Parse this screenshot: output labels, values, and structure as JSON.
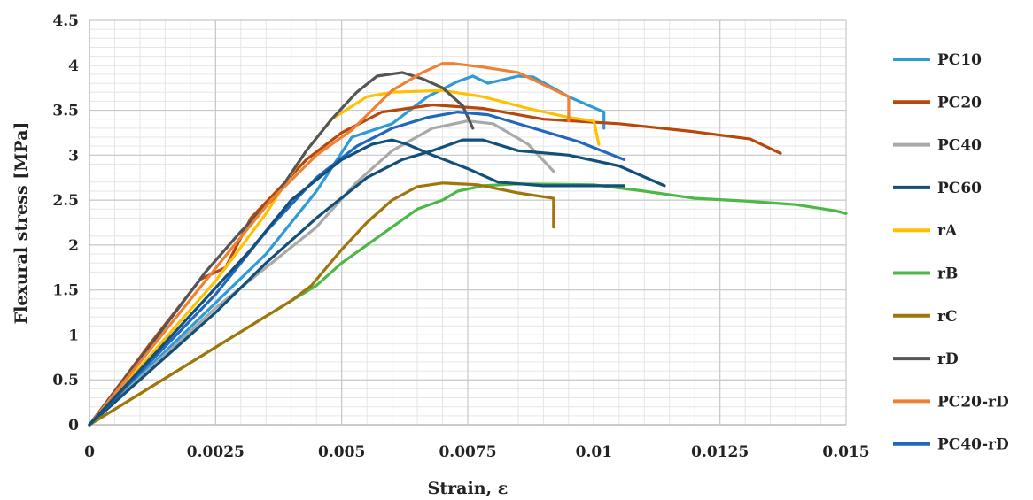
{
  "chart_data": {
    "type": "line",
    "title": "",
    "xlabel": "Strain, ε",
    "ylabel": "Flexural stress [MPa]",
    "xlim": [
      0,
      0.015
    ],
    "ylim": [
      0,
      4.5
    ],
    "x_ticks": [
      "0",
      "0.0025",
      "0.005",
      "0.0075",
      "0.01",
      "0.0125",
      "0.015"
    ],
    "y_ticks": [
      "0",
      "0.5",
      "1",
      "1.5",
      "2",
      "2.5",
      "3",
      "3.5",
      "4",
      "4.5"
    ],
    "grid": "major and minor",
    "legend_position": "right",
    "series": [
      {
        "name": "PC10",
        "color": "#2e9bd6",
        "points": [
          [
            0,
            0
          ],
          [
            0.0035,
            1.9
          ],
          [
            0.0045,
            2.6
          ],
          [
            0.0052,
            3.2
          ],
          [
            0.006,
            3.35
          ],
          [
            0.0067,
            3.65
          ],
          [
            0.0073,
            3.82
          ],
          [
            0.0076,
            3.88
          ],
          [
            0.0079,
            3.8
          ],
          [
            0.0085,
            3.88
          ],
          [
            0.0088,
            3.87
          ],
          [
            0.0095,
            3.65
          ],
          [
            0.0102,
            3.48
          ],
          [
            0.0102,
            3.3
          ]
        ]
      },
      {
        "name": "PC20",
        "color": "#b8470c",
        "points": [
          [
            0,
            0
          ],
          [
            0.0012,
            0.9
          ],
          [
            0.0022,
            1.62
          ],
          [
            0.0027,
            1.75
          ],
          [
            0.0032,
            2.3
          ],
          [
            0.0038,
            2.65
          ],
          [
            0.0043,
            2.95
          ],
          [
            0.005,
            3.25
          ],
          [
            0.0058,
            3.48
          ],
          [
            0.0068,
            3.56
          ],
          [
            0.0078,
            3.52
          ],
          [
            0.009,
            3.4
          ],
          [
            0.0105,
            3.35
          ],
          [
            0.012,
            3.26
          ],
          [
            0.0131,
            3.18
          ],
          [
            0.0137,
            3.02
          ]
        ]
      },
      {
        "name": "PC40",
        "color": "#a9a9a9",
        "points": [
          [
            0,
            0
          ],
          [
            0.0025,
            1.3
          ],
          [
            0.0035,
            1.75
          ],
          [
            0.0045,
            2.2
          ],
          [
            0.0053,
            2.7
          ],
          [
            0.006,
            3.05
          ],
          [
            0.0068,
            3.3
          ],
          [
            0.0075,
            3.38
          ],
          [
            0.008,
            3.35
          ],
          [
            0.0087,
            3.12
          ],
          [
            0.0092,
            2.82
          ]
        ]
      },
      {
        "name": "PC60",
        "color": "#12507a",
        "points": [
          [
            0,
            0
          ],
          [
            0.0025,
            1.25
          ],
          [
            0.0035,
            1.8
          ],
          [
            0.0045,
            2.3
          ],
          [
            0.0055,
            2.75
          ],
          [
            0.0062,
            2.95
          ],
          [
            0.0068,
            3.05
          ],
          [
            0.0074,
            3.17
          ],
          [
            0.0078,
            3.17
          ],
          [
            0.0085,
            3.05
          ],
          [
            0.0095,
            3.0
          ],
          [
            0.0105,
            2.88
          ],
          [
            0.0114,
            2.66
          ]
        ]
      },
      {
        "name": "rA",
        "color": "#ffc000",
        "points": [
          [
            0,
            0
          ],
          [
            0.0025,
            1.6
          ],
          [
            0.0035,
            2.35
          ],
          [
            0.0043,
            3.05
          ],
          [
            0.0048,
            3.4
          ],
          [
            0.0055,
            3.65
          ],
          [
            0.006,
            3.7
          ],
          [
            0.007,
            3.72
          ],
          [
            0.0078,
            3.65
          ],
          [
            0.0087,
            3.52
          ],
          [
            0.0095,
            3.42
          ],
          [
            0.01,
            3.38
          ],
          [
            0.0101,
            3.12
          ]
        ]
      },
      {
        "name": "rB",
        "color": "#4cb848",
        "points": [
          [
            0,
            0
          ],
          [
            0.004,
            1.38
          ],
          [
            0.0045,
            1.55
          ],
          [
            0.005,
            1.8
          ],
          [
            0.0055,
            2.0
          ],
          [
            0.006,
            2.2
          ],
          [
            0.0065,
            2.4
          ],
          [
            0.007,
            2.5
          ],
          [
            0.0073,
            2.6
          ],
          [
            0.0078,
            2.66
          ],
          [
            0.0085,
            2.68
          ],
          [
            0.01,
            2.67
          ],
          [
            0.011,
            2.6
          ],
          [
            0.012,
            2.52
          ],
          [
            0.013,
            2.49
          ],
          [
            0.014,
            2.45
          ],
          [
            0.0148,
            2.38
          ],
          [
            0.015,
            2.35
          ]
        ]
      },
      {
        "name": "rC",
        "color": "#a0750c",
        "points": [
          [
            0,
            0
          ],
          [
            0.004,
            1.38
          ],
          [
            0.0044,
            1.55
          ],
          [
            0.005,
            1.95
          ],
          [
            0.0055,
            2.25
          ],
          [
            0.006,
            2.5
          ],
          [
            0.0065,
            2.65
          ],
          [
            0.007,
            2.69
          ],
          [
            0.0077,
            2.67
          ],
          [
            0.0085,
            2.58
          ],
          [
            0.0092,
            2.52
          ],
          [
            0.0092,
            2.2
          ]
        ]
      },
      {
        "name": "rD",
        "color": "#555555",
        "points": [
          [
            0,
            0
          ],
          [
            0.0013,
            0.95
          ],
          [
            0.0023,
            1.7
          ],
          [
            0.003,
            2.15
          ],
          [
            0.0037,
            2.55
          ],
          [
            0.0043,
            3.05
          ],
          [
            0.0048,
            3.4
          ],
          [
            0.0053,
            3.7
          ],
          [
            0.0057,
            3.88
          ],
          [
            0.0062,
            3.92
          ],
          [
            0.0066,
            3.85
          ],
          [
            0.007,
            3.75
          ],
          [
            0.0074,
            3.55
          ],
          [
            0.0076,
            3.3
          ]
        ]
      },
      {
        "name": "PC20-rD",
        "color": "#f28032",
        "points": [
          [
            0,
            0
          ],
          [
            0.0028,
            1.95
          ],
          [
            0.0036,
            2.5
          ],
          [
            0.0045,
            3.0
          ],
          [
            0.0052,
            3.28
          ],
          [
            0.006,
            3.72
          ],
          [
            0.0066,
            3.92
          ],
          [
            0.007,
            4.02
          ],
          [
            0.0072,
            4.02
          ],
          [
            0.0078,
            3.98
          ],
          [
            0.0085,
            3.92
          ],
          [
            0.0095,
            3.65
          ],
          [
            0.0095,
            3.38
          ]
        ]
      },
      {
        "name": "PC40-rD",
        "color": "#2166c1",
        "points": [
          [
            0,
            0
          ],
          [
            0.0025,
            1.45
          ],
          [
            0.0035,
            2.15
          ],
          [
            0.0045,
            2.75
          ],
          [
            0.0053,
            3.1
          ],
          [
            0.006,
            3.3
          ],
          [
            0.0067,
            3.42
          ],
          [
            0.0073,
            3.48
          ],
          [
            0.0079,
            3.45
          ],
          [
            0.0088,
            3.3
          ],
          [
            0.0097,
            3.15
          ],
          [
            0.0106,
            2.95
          ]
        ]
      },
      {
        "name": "",
        "color": "#12507a",
        "points": [
          [
            0,
            0
          ],
          [
            0.0032,
            1.95
          ],
          [
            0.004,
            2.5
          ],
          [
            0.005,
            2.95
          ],
          [
            0.0056,
            3.12
          ],
          [
            0.006,
            3.17
          ],
          [
            0.0063,
            3.12
          ],
          [
            0.0068,
            3.0
          ],
          [
            0.0075,
            2.85
          ],
          [
            0.0081,
            2.7
          ],
          [
            0.009,
            2.66
          ],
          [
            0.0106,
            2.66
          ]
        ]
      }
    ]
  }
}
